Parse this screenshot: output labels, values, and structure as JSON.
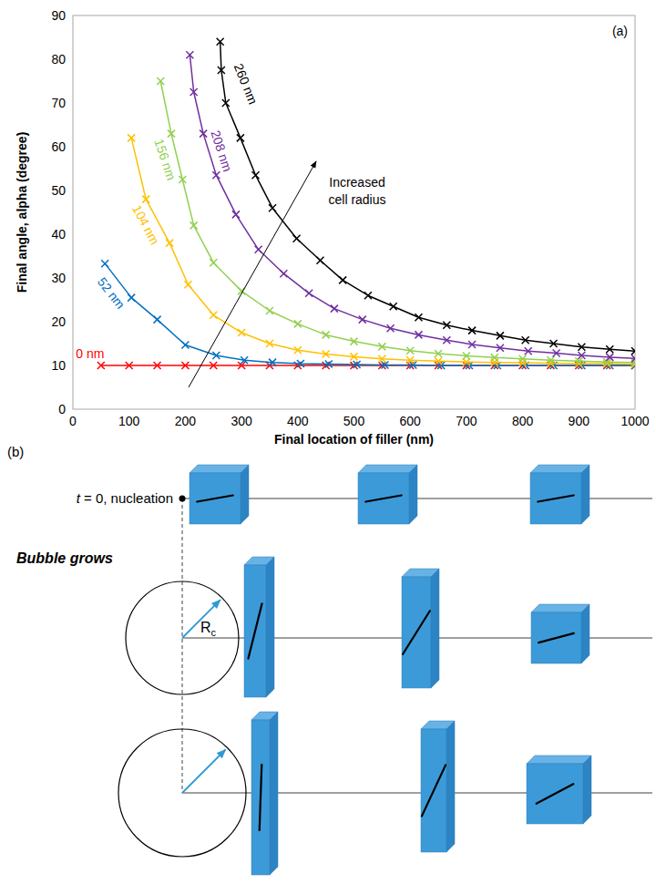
{
  "chart_data": {
    "type": "line",
    "panel_label": "(a)",
    "x_label": "Final location of filler (nm)",
    "y_label": "Final angle, alpha (degree)",
    "xlim": [
      0,
      1000
    ],
    "xticks": [
      0,
      100,
      200,
      300,
      400,
      500,
      600,
      700,
      800,
      900,
      1000
    ],
    "ylim": [
      0,
      90
    ],
    "yticks": [
      0,
      10,
      20,
      30,
      40,
      50,
      60,
      70,
      80,
      90
    ],
    "grid": false,
    "marker": "x",
    "annotations": [
      {
        "text": "Increased cell radius"
      }
    ],
    "series": [
      {
        "name": "0 nm",
        "color": "#ff0000",
        "x": [
          50,
          100,
          150,
          200,
          250,
          300,
          350,
          400,
          450,
          500,
          550,
          600,
          650,
          700,
          750,
          800,
          850,
          900,
          950,
          1000
        ],
        "values": [
          10,
          10,
          10,
          10,
          10,
          10,
          10,
          10,
          10,
          10,
          10,
          10,
          10,
          10,
          10,
          10,
          10,
          10,
          10,
          10
        ]
      },
      {
        "name": "52 nm",
        "color": "#0070c0",
        "x": [
          57,
          104,
          150,
          200,
          255,
          305,
          355,
          405,
          455,
          505,
          555,
          605,
          655,
          705,
          755,
          805,
          855,
          905,
          955,
          1000
        ],
        "values": [
          33.3,
          25.5,
          20.5,
          14.7,
          12.3,
          11.2,
          10.7,
          10.4,
          10.3,
          10.2,
          10.1,
          10.1,
          10.0,
          10.0,
          10.0,
          10.0,
          10.0,
          10.0,
          10.0,
          10.0
        ]
      },
      {
        "name": "104 nm",
        "color": "#ffc000",
        "x": [
          104,
          130,
          172,
          205,
          250,
          300,
          350,
          400,
          450,
          500,
          550,
          600,
          650,
          700,
          750,
          800,
          850,
          900,
          950,
          1000
        ],
        "values": [
          62,
          48,
          38,
          28.5,
          21.5,
          17.5,
          15,
          13.5,
          12.6,
          12,
          11.5,
          11.2,
          11,
          10.8,
          10.7,
          10.6,
          10.5,
          10.4,
          10.4,
          10.3
        ]
      },
      {
        "name": "156 nm",
        "color": "#92d050",
        "x": [
          156,
          175,
          195,
          215,
          250,
          300,
          350,
          400,
          450,
          500,
          550,
          600,
          650,
          700,
          750,
          800,
          850,
          900,
          950,
          1000
        ],
        "values": [
          75,
          63,
          52.5,
          42,
          33.5,
          27,
          22.5,
          19.5,
          17,
          15.5,
          14.3,
          13.4,
          12.7,
          12.2,
          11.8,
          11.5,
          11.2,
          11,
          10.8,
          10.7
        ]
      },
      {
        "name": "208 nm",
        "color": "#7030a0",
        "x": [
          208,
          215,
          232,
          255,
          290,
          330,
          375,
          420,
          465,
          515,
          565,
          615,
          665,
          710,
          760,
          810,
          860,
          905,
          955,
          1000
        ],
        "values": [
          81,
          72.5,
          63,
          53.5,
          44.5,
          36.5,
          31,
          26.5,
          23,
          20.5,
          18.5,
          17,
          15.8,
          14.8,
          14,
          13.3,
          12.8,
          12.3,
          11.9,
          11.6
        ]
      },
      {
        "name": "260 nm",
        "color": "#000000",
        "x": [
          262,
          264,
          272,
          298,
          325,
          355,
          398,
          440,
          480,
          525,
          570,
          615,
          665,
          710,
          760,
          805,
          855,
          905,
          955,
          1000
        ],
        "values": [
          84,
          77.5,
          70,
          62,
          53.5,
          46,
          39,
          34,
          29.5,
          26,
          23.5,
          21,
          19.2,
          18,
          16.8,
          15.8,
          15,
          14.2,
          13.7,
          13.3
        ]
      }
    ]
  },
  "diagram": {
    "panel_label": "(b)",
    "nucleation_label": "t = 0, nucleation",
    "growth_label": "Bubble grows",
    "radius_label": "R",
    "radius_subscript": "c"
  }
}
